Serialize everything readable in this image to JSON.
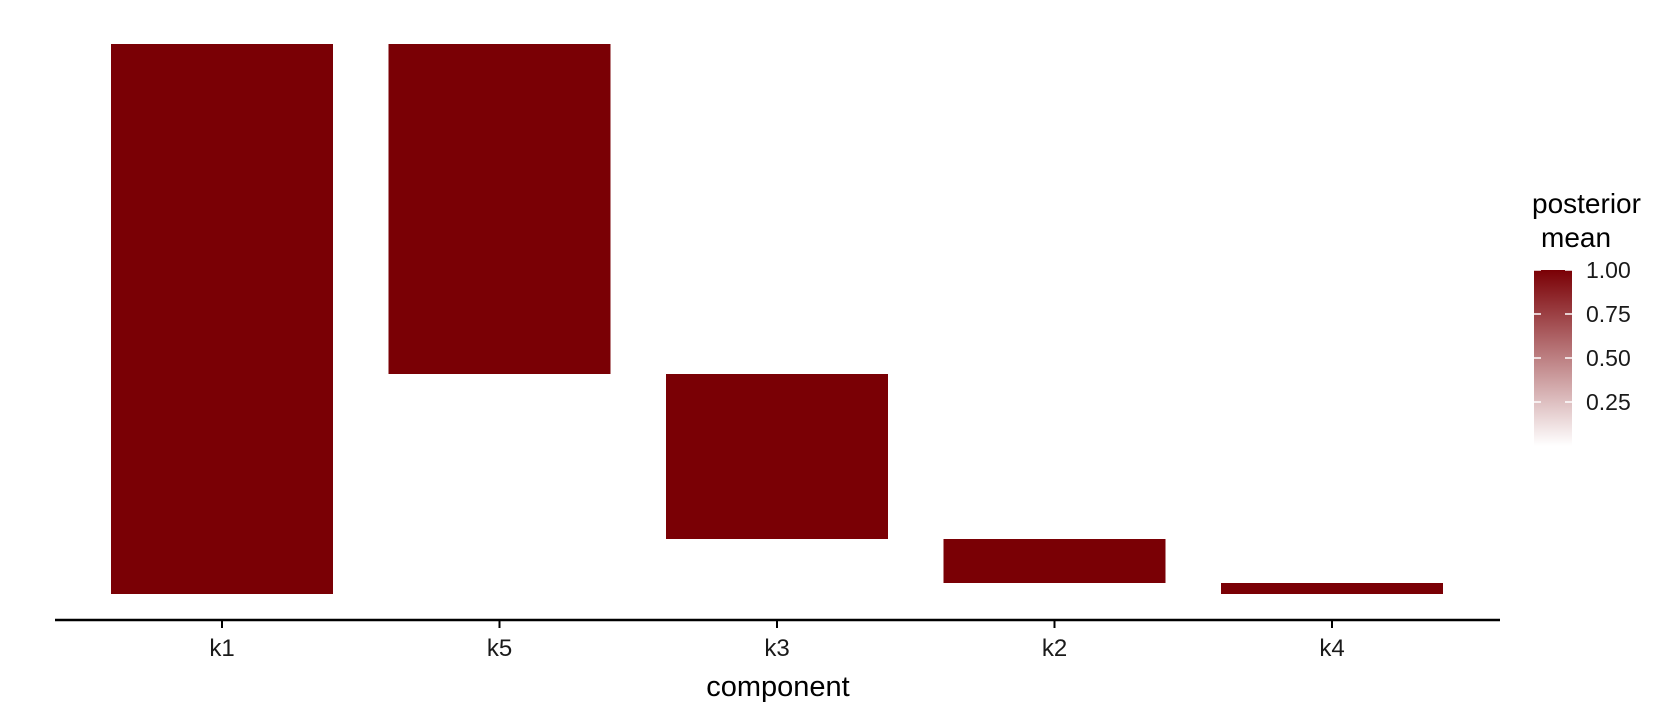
{
  "chart_data": {
    "type": "heatmap",
    "title": "",
    "xlabel": "component",
    "ylabel": "",
    "categories": [
      "k1",
      "k5",
      "k3",
      "k2",
      "k4"
    ],
    "segments": [
      {
        "component": "k1",
        "start": 0.0,
        "end": 1.0,
        "value": 1.0
      },
      {
        "component": "k5",
        "start": 0.0,
        "end": 0.6,
        "value": 1.0
      },
      {
        "component": "k3",
        "start": 0.6,
        "end": 0.9,
        "value": 1.0
      },
      {
        "component": "k2",
        "start": 0.9,
        "end": 0.98,
        "value": 1.0
      },
      {
        "component": "k4",
        "start": 0.98,
        "end": 1.0,
        "value": 1.0
      }
    ],
    "legend": {
      "title_lines": [
        "posterior",
        "mean"
      ],
      "ticks": [
        1.0,
        0.75,
        0.5,
        0.25
      ],
      "tick_labels": [
        "1.00",
        "0.75",
        "0.50",
        "0.25"
      ],
      "range": [
        0,
        1
      ],
      "position": "right"
    },
    "grid": false,
    "colors": {
      "high": "#7a0005",
      "low": "#ffffff",
      "axis": "#000000"
    }
  }
}
